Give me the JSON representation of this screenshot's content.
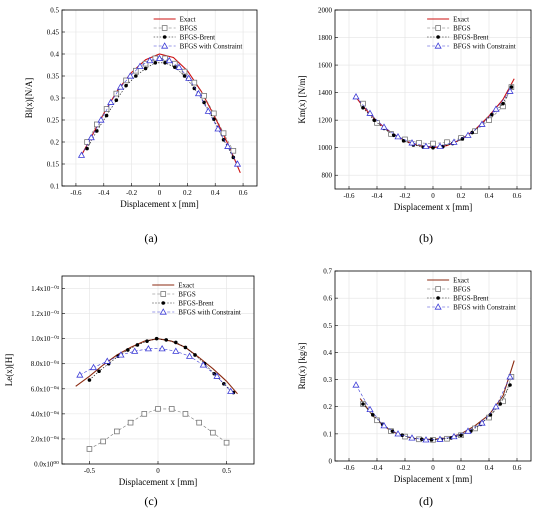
{
  "colors": {
    "exact": "#cc1111",
    "exact_c": "#8b2a10",
    "bfgs": "#777777",
    "brent": "#000000",
    "constraint": "#3b3bd6"
  },
  "chart_data": [
    {
      "id": "a",
      "type": "line",
      "panel_label": "(a)",
      "xlabel": "Displacement x [mm]",
      "ylabel": "Bl(x)[N/A]",
      "xlim": [
        -0.7,
        0.7
      ],
      "ylim": [
        0.1,
        0.5
      ],
      "xticks": [
        -0.6,
        -0.4,
        -0.2,
        0,
        0.2,
        0.4,
        0.6
      ],
      "xtick_labels": [
        "-0.6",
        "-0.4",
        "-0.2",
        "0",
        "0.2",
        "0.4",
        "0.6"
      ],
      "yticks": [
        0.1,
        0.15,
        0.2,
        0.25,
        0.3,
        0.35,
        0.4,
        0.45,
        0.5
      ],
      "ytick_labels": [
        "0.1",
        "0.15",
        "0.2",
        "0.25",
        "0.3",
        "0.35",
        "0.4",
        "0.45",
        "0.5"
      ],
      "grid": true,
      "legend": "top-right",
      "series": [
        {
          "name": "Exact",
          "style": "line-exact",
          "x": [
            -0.56,
            -0.5,
            -0.4,
            -0.3,
            -0.2,
            -0.1,
            0,
            0.1,
            0.2,
            0.3,
            0.4,
            0.5,
            0.58
          ],
          "y": [
            0.17,
            0.205,
            0.265,
            0.318,
            0.358,
            0.387,
            0.4,
            0.392,
            0.362,
            0.315,
            0.255,
            0.19,
            0.13
          ]
        },
        {
          "name": "BFGS",
          "style": "square",
          "x": [
            -0.52,
            -0.45,
            -0.38,
            -0.31,
            -0.24,
            -0.17,
            -0.1,
            -0.03,
            0.04,
            0.11,
            0.18,
            0.25,
            0.32,
            0.39,
            0.46,
            0.53
          ],
          "y": [
            0.2,
            0.24,
            0.275,
            0.31,
            0.34,
            0.362,
            0.378,
            0.39,
            0.39,
            0.378,
            0.36,
            0.335,
            0.305,
            0.265,
            0.22,
            0.18
          ]
        },
        {
          "name": "BFGS-Brent",
          "style": "dot",
          "x": [
            -0.52,
            -0.45,
            -0.38,
            -0.31,
            -0.24,
            -0.17,
            -0.1,
            -0.03,
            0.04,
            0.11,
            0.18,
            0.25,
            0.32,
            0.39,
            0.46,
            0.53
          ],
          "y": [
            0.185,
            0.225,
            0.26,
            0.295,
            0.328,
            0.35,
            0.367,
            0.38,
            0.38,
            0.37,
            0.35,
            0.322,
            0.29,
            0.252,
            0.205,
            0.165
          ]
        },
        {
          "name": "BFGS with Constraint",
          "style": "triangle",
          "x": [
            -0.56,
            -0.49,
            -0.42,
            -0.35,
            -0.28,
            -0.21,
            -0.14,
            -0.07,
            0,
            0.07,
            0.14,
            0.21,
            0.28,
            0.35,
            0.42,
            0.49,
            0.56
          ],
          "y": [
            0.17,
            0.21,
            0.25,
            0.29,
            0.325,
            0.35,
            0.372,
            0.385,
            0.39,
            0.385,
            0.37,
            0.345,
            0.31,
            0.27,
            0.23,
            0.19,
            0.15
          ]
        }
      ]
    },
    {
      "id": "b",
      "type": "line",
      "panel_label": "(b)",
      "xlabel": "Displacement x [mm]",
      "ylabel": "Km(x) [N/m]",
      "xlim": [
        -0.7,
        0.7
      ],
      "ylim": [
        700,
        2000
      ],
      "xticks": [
        -0.6,
        -0.4,
        -0.2,
        0,
        0.2,
        0.4,
        0.6
      ],
      "xtick_labels": [
        "-0.6",
        "-0.4",
        "-0.2",
        "0",
        "0.2",
        "0.4",
        "0.6"
      ],
      "yticks": [
        800,
        1000,
        1200,
        1400,
        1600,
        1800,
        2000
      ],
      "ytick_labels": [
        "800",
        "1000",
        "1200",
        "1400",
        "1600",
        "1800",
        "2000"
      ],
      "grid": true,
      "legend": "top-right",
      "series": [
        {
          "name": "Exact",
          "style": "line-exact",
          "x": [
            -0.56,
            -0.5,
            -0.4,
            -0.3,
            -0.2,
            -0.1,
            0,
            0.1,
            0.2,
            0.3,
            0.4,
            0.5,
            0.58
          ],
          "y": [
            1380,
            1300,
            1190,
            1110,
            1050,
            1015,
            1000,
            1015,
            1060,
            1130,
            1230,
            1350,
            1500
          ]
        },
        {
          "name": "BFGS",
          "style": "square",
          "x": [
            -0.5,
            -0.4,
            -0.3,
            -0.2,
            -0.1,
            0,
            0.1,
            0.2,
            0.3,
            0.4,
            0.5,
            0.56
          ],
          "y": [
            1320,
            1180,
            1100,
            1060,
            1035,
            1030,
            1040,
            1070,
            1120,
            1200,
            1300,
            1440
          ]
        },
        {
          "name": "BFGS-Brent",
          "style": "dot",
          "x": [
            -0.5,
            -0.42,
            -0.35,
            -0.28,
            -0.21,
            -0.14,
            -0.07,
            0,
            0.07,
            0.14,
            0.21,
            0.28,
            0.35,
            0.42,
            0.5,
            0.56
          ],
          "y": [
            1290,
            1200,
            1140,
            1090,
            1050,
            1020,
            1005,
            1000,
            1008,
            1030,
            1065,
            1110,
            1170,
            1240,
            1320,
            1440
          ]
        },
        {
          "name": "BFGS with Constraint",
          "style": "triangle",
          "x": [
            -0.55,
            -0.45,
            -0.35,
            -0.25,
            -0.15,
            -0.05,
            0.05,
            0.15,
            0.25,
            0.35,
            0.45,
            0.55
          ],
          "y": [
            1370,
            1250,
            1150,
            1080,
            1035,
            1010,
            1010,
            1040,
            1090,
            1170,
            1280,
            1410
          ]
        }
      ]
    },
    {
      "id": "c",
      "type": "line",
      "panel_label": "(c)",
      "xlabel": "Displacement x [mm]",
      "ylabel": "Le(x)[H]",
      "xlim": [
        -0.7,
        0.7
      ],
      "ylim": [
        0,
        1.5
      ],
      "xticks": [
        -0.5,
        0,
        0.5
      ],
      "xtick_labels": [
        "-0.5",
        "0",
        "0.5"
      ],
      "yticks": [
        0,
        0.2,
        0.4,
        0.6,
        0.8,
        1.0,
        1.2,
        1.4
      ],
      "ytick_labels": [
        "0.0x10⁰⁰",
        "2.0x10⁻⁰⁴",
        "4.0x10⁻⁰⁴",
        "6.0x10⁻⁰⁴",
        "8.0x10⁻⁰⁴",
        "1.0x10⁻⁰³",
        "1.2x10⁻⁰³",
        "1.4x10⁻⁰³"
      ],
      "grid": true,
      "legend": "top-right",
      "series": [
        {
          "name": "Exact",
          "style": "line-exact-c",
          "x": [
            -0.6,
            -0.5,
            -0.4,
            -0.3,
            -0.2,
            -0.1,
            0,
            0.1,
            0.2,
            0.3,
            0.4,
            0.5,
            0.58
          ],
          "y": [
            0.62,
            0.7,
            0.79,
            0.87,
            0.93,
            0.98,
            1.0,
            0.98,
            0.93,
            0.85,
            0.76,
            0.66,
            0.56
          ]
        },
        {
          "name": "BFGS",
          "style": "square",
          "x": [
            -0.5,
            -0.4,
            -0.3,
            -0.2,
            -0.1,
            0,
            0.1,
            0.2,
            0.3,
            0.4,
            0.5
          ],
          "y": [
            0.12,
            0.18,
            0.26,
            0.33,
            0.4,
            0.44,
            0.44,
            0.4,
            0.33,
            0.25,
            0.17
          ]
        },
        {
          "name": "BFGS-Brent",
          "style": "dot",
          "x": [
            -0.5,
            -0.43,
            -0.36,
            -0.29,
            -0.22,
            -0.15,
            -0.08,
            -0.01,
            0.06,
            0.13,
            0.2,
            0.27,
            0.34,
            0.41,
            0.48,
            0.55
          ],
          "y": [
            0.67,
            0.74,
            0.8,
            0.86,
            0.91,
            0.95,
            0.98,
            1.0,
            0.99,
            0.97,
            0.93,
            0.87,
            0.8,
            0.72,
            0.64,
            0.57
          ]
        },
        {
          "name": "BFGS with Constraint",
          "style": "triangle",
          "x": [
            -0.57,
            -0.47,
            -0.37,
            -0.27,
            -0.17,
            -0.07,
            0.03,
            0.13,
            0.23,
            0.33,
            0.43,
            0.53
          ],
          "y": [
            0.71,
            0.77,
            0.82,
            0.87,
            0.9,
            0.92,
            0.92,
            0.9,
            0.86,
            0.79,
            0.7,
            0.58
          ]
        }
      ]
    },
    {
      "id": "d",
      "type": "line",
      "panel_label": "(d)",
      "xlabel": "Displacement x [mm]",
      "ylabel": "Rm(x) [kg/s]",
      "xlim": [
        -0.7,
        0.7
      ],
      "ylim": [
        0,
        0.7
      ],
      "xticks": [
        -0.6,
        -0.4,
        -0.2,
        0,
        0.2,
        0.4,
        0.6
      ],
      "xtick_labels": [
        "-0.6",
        "-0.4",
        "-0.2",
        "0",
        "0.2",
        "0.4",
        "0.6"
      ],
      "yticks": [
        0,
        0.1,
        0.2,
        0.3,
        0.4,
        0.5,
        0.6,
        0.7
      ],
      "ytick_labels": [
        "0",
        "0.1",
        "0.2",
        "0.3",
        "0.4",
        "0.5",
        "0.6",
        "0.7"
      ],
      "grid": true,
      "legend": "top-right",
      "series": [
        {
          "name": "Exact",
          "style": "line-exact-c",
          "x": [
            -0.52,
            -0.45,
            -0.4,
            -0.3,
            -0.2,
            -0.1,
            0,
            0.1,
            0.2,
            0.3,
            0.4,
            0.5,
            0.58
          ],
          "y": [
            0.23,
            0.18,
            0.15,
            0.11,
            0.09,
            0.08,
            0.08,
            0.085,
            0.1,
            0.13,
            0.17,
            0.24,
            0.37
          ]
        },
        {
          "name": "BFGS",
          "style": "square",
          "x": [
            -0.5,
            -0.4,
            -0.3,
            -0.2,
            -0.1,
            0,
            0.1,
            0.2,
            0.3,
            0.4,
            0.5,
            0.56
          ],
          "y": [
            0.21,
            0.15,
            0.11,
            0.09,
            0.08,
            0.078,
            0.082,
            0.095,
            0.12,
            0.16,
            0.22,
            0.31
          ]
        },
        {
          "name": "BFGS-Brent",
          "style": "dot",
          "x": [
            -0.5,
            -0.43,
            -0.36,
            -0.29,
            -0.22,
            -0.15,
            -0.08,
            -0.01,
            0.06,
            0.13,
            0.2,
            0.27,
            0.34,
            0.41,
            0.48,
            0.55
          ],
          "y": [
            0.21,
            0.17,
            0.135,
            0.11,
            0.095,
            0.085,
            0.08,
            0.078,
            0.08,
            0.085,
            0.095,
            0.11,
            0.135,
            0.17,
            0.21,
            0.28
          ]
        },
        {
          "name": "BFGS with Constraint",
          "style": "triangle",
          "x": [
            -0.55,
            -0.45,
            -0.35,
            -0.25,
            -0.15,
            -0.05,
            0.05,
            0.15,
            0.25,
            0.35,
            0.45,
            0.55
          ],
          "y": [
            0.28,
            0.19,
            0.13,
            0.1,
            0.085,
            0.078,
            0.08,
            0.09,
            0.11,
            0.14,
            0.2,
            0.31
          ]
        }
      ]
    }
  ]
}
